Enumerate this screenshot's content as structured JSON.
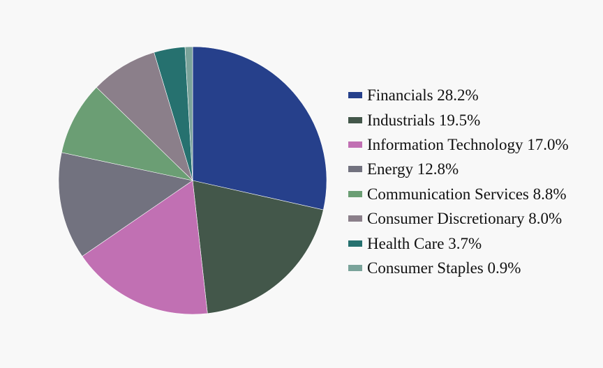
{
  "chart_data": {
    "type": "pie",
    "title": "",
    "categories": [
      "Financials",
      "Industrials",
      "Information Technology",
      "Energy",
      "Communication Services",
      "Consumer Discretionary",
      "Health Care",
      "Consumer Staples"
    ],
    "values": [
      28.2,
      19.5,
      17.0,
      12.8,
      8.8,
      8.0,
      3.7,
      0.9
    ],
    "labels": [
      "Financials 28.2%",
      "Industrials 19.5%",
      "Information Technology 17.0%",
      "Energy 12.8%",
      "Communication Services 8.8%",
      "Consumer Discretionary 8.0%",
      "Health Care 3.7%",
      "Consumer Staples 0.9%"
    ],
    "colors": [
      "#26408b",
      "#43574a",
      "#c170b3",
      "#72727f",
      "#6b9e74",
      "#8b7f8a",
      "#26716f",
      "#7aa39a"
    ],
    "start": "top",
    "direction": "clockwise",
    "legend_position": "right"
  }
}
